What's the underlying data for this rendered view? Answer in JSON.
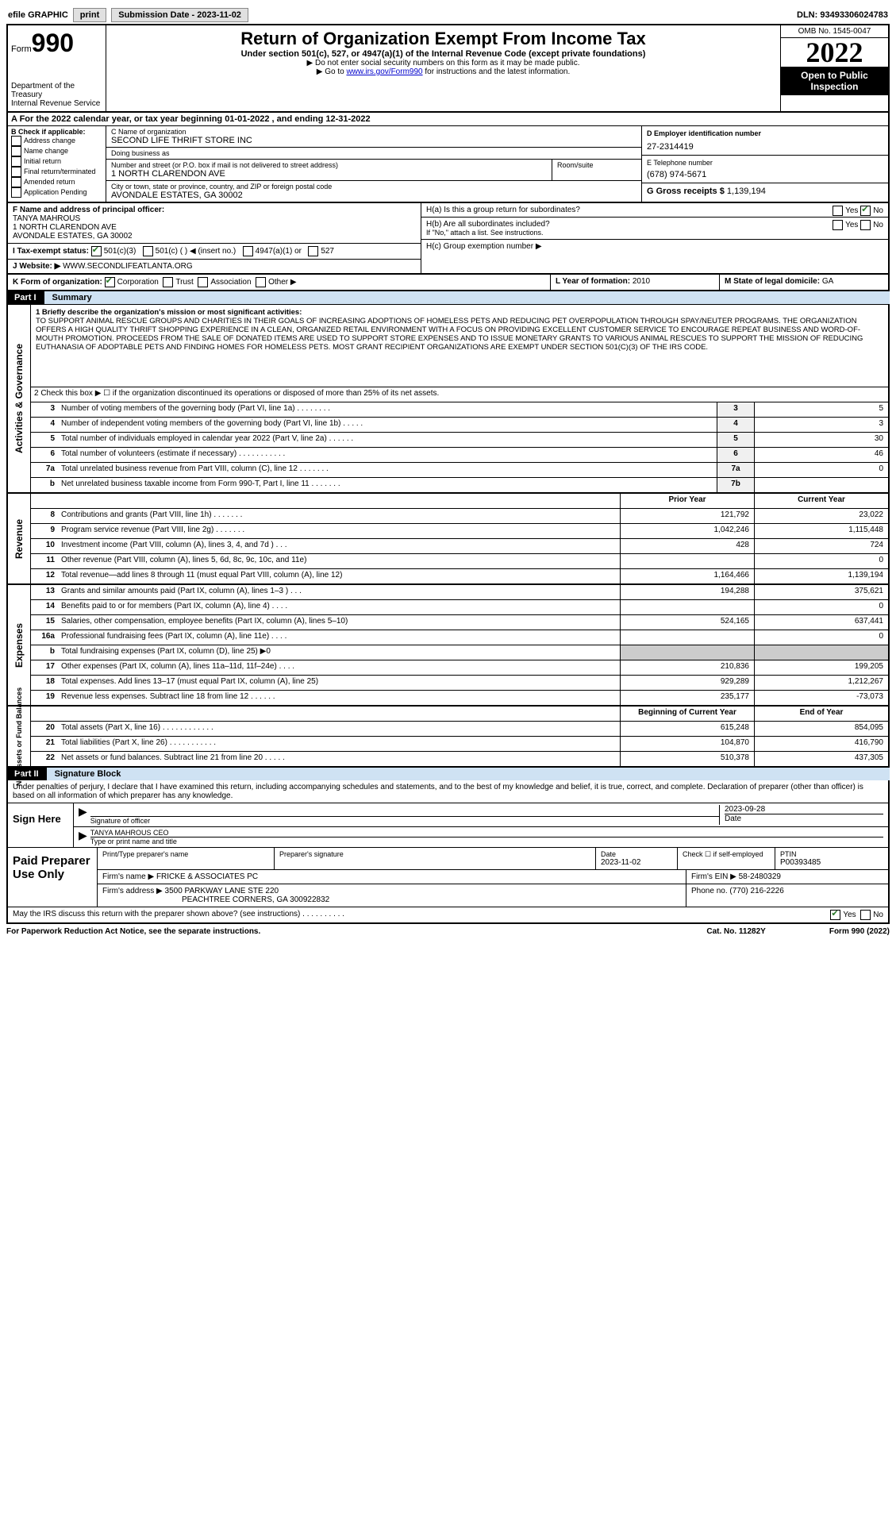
{
  "top": {
    "efile": "efile GRAPHIC",
    "print": "print",
    "submission_label": "Submission Date - 2023-11-02",
    "dln": "DLN: 93493306024783"
  },
  "header": {
    "form_prefix": "Form",
    "form_number": "990",
    "dept": "Department of the Treasury\nInternal Revenue Service",
    "title": "Return of Organization Exempt From Income Tax",
    "subtitle": "Under section 501(c), 527, or 4947(a)(1) of the Internal Revenue Code (except private foundations)",
    "note1": "▶ Do not enter social security numbers on this form as it may be made public.",
    "note2_prefix": "▶ Go to ",
    "note2_link": "www.irs.gov/Form990",
    "note2_suffix": " for instructions and the latest information.",
    "omb": "OMB No. 1545-0047",
    "year": "2022",
    "open": "Open to Public Inspection"
  },
  "lineA": "A For the 2022 calendar year, or tax year beginning 01-01-2022   , and ending 12-31-2022",
  "boxB": {
    "label": "B Check if applicable:",
    "items": [
      "Address change",
      "Name change",
      "Initial return",
      "Final return/terminated",
      "Amended return",
      "Application Pending"
    ]
  },
  "boxC": {
    "label_name": "C Name of organization",
    "name": "SECOND LIFE THRIFT STORE INC",
    "dba_label": "Doing business as",
    "dba": "",
    "addr_label": "Number and street (or P.O. box if mail is not delivered to street address)",
    "addr": "1 NORTH CLARENDON AVE",
    "room_label": "Room/suite",
    "room": "",
    "city_label": "City or town, state or province, country, and ZIP or foreign postal code",
    "city": "AVONDALE ESTATES, GA  30002"
  },
  "boxD": {
    "label": "D Employer identification number",
    "value": "27-2314419"
  },
  "boxE": {
    "label": "E Telephone number",
    "value": "(678) 974-5671"
  },
  "boxG": {
    "label": "G Gross receipts $",
    "value": "1,139,194"
  },
  "boxF": {
    "label": "F  Name and address of principal officer:",
    "name": "TANYA MAHROUS",
    "addr1": "1 NORTH CLARENDON AVE",
    "addr2": "AVONDALE ESTATES, GA  30002"
  },
  "boxH": {
    "a_label": "H(a)  Is this a group return for subordinates?",
    "a_yes": "Yes",
    "a_no": "No",
    "b_label": "H(b)  Are all subordinates included?",
    "b_yes": "Yes",
    "b_no": "No",
    "b_note": "If \"No,\" attach a list. See instructions.",
    "c_label": "H(c)  Group exemption number ▶"
  },
  "boxI": {
    "label": "I   Tax-exempt status:",
    "opts": [
      "501(c)(3)",
      "501(c) (  ) ◀ (insert no.)",
      "4947(a)(1) or",
      "527"
    ]
  },
  "boxJ": {
    "label": "J   Website: ▶",
    "value": "WWW.SECONDLIFEATLANTA.ORG"
  },
  "boxK": {
    "label": "K Form of organization:",
    "opts": [
      "Corporation",
      "Trust",
      "Association",
      "Other ▶"
    ]
  },
  "boxL": {
    "label": "L Year of formation:",
    "value": "2010"
  },
  "boxM": {
    "label": "M State of legal domicile:",
    "value": "GA"
  },
  "part1": {
    "label": "Part I",
    "title": "Summary"
  },
  "mission": {
    "label": "1   Briefly describe the organization's mission or most significant activities:",
    "text": "TO SUPPORT ANIMAL RESCUE GROUPS AND CHARITIES IN THEIR GOALS OF INCREASING ADOPTIONS OF HOMELESS PETS AND REDUCING PET OVERPOPULATION THROUGH SPAY/NEUTER PROGRAMS. THE ORGANIZATION OFFERS A HIGH QUALITY THRIFT SHOPPING EXPERIENCE IN A CLEAN, ORGANIZED RETAIL ENVIRONMENT WITH A FOCUS ON PROVIDING EXCELLENT CUSTOMER SERVICE TO ENCOURAGE REPEAT BUSINESS AND WORD-OF-MOUTH PROMOTION. PROCEEDS FROM THE SALE OF DONATED ITEMS ARE USED TO SUPPORT STORE EXPENSES AND TO ISSUE MONETARY GRANTS TO VARIOUS ANIMAL RESCUES TO SUPPORT THE MISSION OF REDUCING EUTHANASIA OF ADOPTABLE PETS AND FINDING HOMES FOR HOMELESS PETS. MOST GRANT RECIPIENT ORGANIZATIONS ARE EXEMPT UNDER SECTION 501(C)(3) OF THE IRS CODE."
  },
  "governance": {
    "side": "Activities & Governance",
    "line2": "2   Check this box ▶ ☐  if the organization discontinued its operations or disposed of more than 25% of its net assets.",
    "rows": [
      {
        "n": "3",
        "t": "Number of voting members of the governing body (Part VI, line 1a)   .     .     .     .     .     .     .     .",
        "box": "3",
        "v": "5"
      },
      {
        "n": "4",
        "t": "Number of independent voting members of the governing body (Part VI, line 1b)   .     .     .     .     .",
        "box": "4",
        "v": "3"
      },
      {
        "n": "5",
        "t": "Total number of individuals employed in calendar year 2022 (Part V, line 2a)   .     .     .     .     .     .",
        "box": "5",
        "v": "30"
      },
      {
        "n": "6",
        "t": "Total number of volunteers (estimate if necessary)   .     .     .     .     .     .     .     .     .     .     .",
        "box": "6",
        "v": "46"
      },
      {
        "n": "7a",
        "t": "Total unrelated business revenue from Part VIII, column (C), line 12   .     .     .     .     .     .     .",
        "box": "7a",
        "v": "0"
      },
      {
        "n": "b",
        "t": "Net unrelated business taxable income from Form 990-T, Part I, line 11   .     .     .     .     .     .     .",
        "box": "7b",
        "v": ""
      }
    ]
  },
  "revenue": {
    "side": "Revenue",
    "header_prior": "Prior Year",
    "header_current": "Current Year",
    "rows": [
      {
        "n": "8",
        "t": "Contributions and grants (Part VIII, line 1h)   .     .     .     .     .     .     .",
        "p": "121,792",
        "c": "23,022"
      },
      {
        "n": "9",
        "t": "Program service revenue (Part VIII, line 2g)   .     .     .     .     .     .     .",
        "p": "1,042,246",
        "c": "1,115,448"
      },
      {
        "n": "10",
        "t": "Investment income (Part VIII, column (A), lines 3, 4, and 7d )   .     .     .",
        "p": "428",
        "c": "724"
      },
      {
        "n": "11",
        "t": "Other revenue (Part VIII, column (A), lines 5, 6d, 8c, 9c, 10c, and 11e)",
        "p": "",
        "c": "0"
      },
      {
        "n": "12",
        "t": "Total revenue—add lines 8 through 11 (must equal Part VIII, column (A), line 12)",
        "p": "1,164,466",
        "c": "1,139,194"
      }
    ]
  },
  "expenses": {
    "side": "Expenses",
    "rows": [
      {
        "n": "13",
        "t": "Grants and similar amounts paid (Part IX, column (A), lines 1–3 )   .     .     .",
        "p": "194,288",
        "c": "375,621"
      },
      {
        "n": "14",
        "t": "Benefits paid to or for members (Part IX, column (A), line 4)   .     .     .     .",
        "p": "",
        "c": "0"
      },
      {
        "n": "15",
        "t": "Salaries, other compensation, employee benefits (Part IX, column (A), lines 5–10)",
        "p": "524,165",
        "c": "637,441"
      },
      {
        "n": "16a",
        "t": "Professional fundraising fees (Part IX, column (A), line 11e)   .     .     .     .",
        "p": "",
        "c": "0"
      },
      {
        "n": "b",
        "t": "Total fundraising expenses (Part IX, column (D), line 25) ▶0",
        "p": "SHADE",
        "c": "SHADE"
      },
      {
        "n": "17",
        "t": "Other expenses (Part IX, column (A), lines 11a–11d, 11f–24e)   .     .     .     .",
        "p": "210,836",
        "c": "199,205"
      },
      {
        "n": "18",
        "t": "Total expenses. Add lines 13–17 (must equal Part IX, column (A), line 25)",
        "p": "929,289",
        "c": "1,212,267"
      },
      {
        "n": "19",
        "t": "Revenue less expenses. Subtract line 18 from line 12   .     .     .     .     .     .",
        "p": "235,177",
        "c": "-73,073"
      }
    ]
  },
  "netassets": {
    "side": "Net Assets or Fund Balances",
    "header_begin": "Beginning of Current Year",
    "header_end": "End of Year",
    "rows": [
      {
        "n": "20",
        "t": "Total assets (Part X, line 16)   .     .     .     .     .     .     .     .     .     .     .     .",
        "p": "615,248",
        "c": "854,095"
      },
      {
        "n": "21",
        "t": "Total liabilities (Part X, line 26)   .     .     .     .     .     .     .     .     .     .     .",
        "p": "104,870",
        "c": "416,790"
      },
      {
        "n": "22",
        "t": "Net assets or fund balances. Subtract line 21 from line 20   .     .     .     .     .",
        "p": "510,378",
        "c": "437,305"
      }
    ]
  },
  "part2": {
    "label": "Part II",
    "title": "Signature Block",
    "declare": "Under penalties of perjury, I declare that I have examined this return, including accompanying schedules and statements, and to the best of my knowledge and belief, it is true, correct, and complete. Declaration of preparer (other than officer) is based on all information of which preparer has any knowledge.",
    "sign_here": "Sign Here",
    "sig_officer": "Signature of officer",
    "sig_date": "2023-09-28",
    "date_label": "Date",
    "sig_name": "TANYA MAHROUS CEO",
    "sig_name_label": "Type or print name and title",
    "paid_label": "Paid Preparer Use Only",
    "prep_name_label": "Print/Type preparer's name",
    "prep_name": "",
    "prep_sig_label": "Preparer's signature",
    "prep_date_label": "Date",
    "prep_date": "2023-11-02",
    "prep_check_label": "Check ☐ if self-employed",
    "ptin_label": "PTIN",
    "ptin": "P00393485",
    "firm_name_label": "Firm's name      ▶",
    "firm_name": "FRICKE & ASSOCIATES PC",
    "firm_ein_label": "Firm's EIN ▶",
    "firm_ein": "58-2480329",
    "firm_addr_label": "Firm's address ▶",
    "firm_addr1": "3500 PARKWAY LANE STE 220",
    "firm_addr2": "PEACHTREE CORNERS, GA  300922832",
    "firm_phone_label": "Phone no.",
    "firm_phone": "(770) 216-2226",
    "discuss": "May the IRS discuss this return with the preparer shown above? (see instructions)   .     .     .     .     .     .     .     .     .     .",
    "discuss_yes": "Yes",
    "discuss_no": "No"
  },
  "footer": {
    "paperwork": "For Paperwork Reduction Act Notice, see the separate instructions.",
    "cat": "Cat. No. 11282Y",
    "form": "Form 990 (2022)"
  }
}
